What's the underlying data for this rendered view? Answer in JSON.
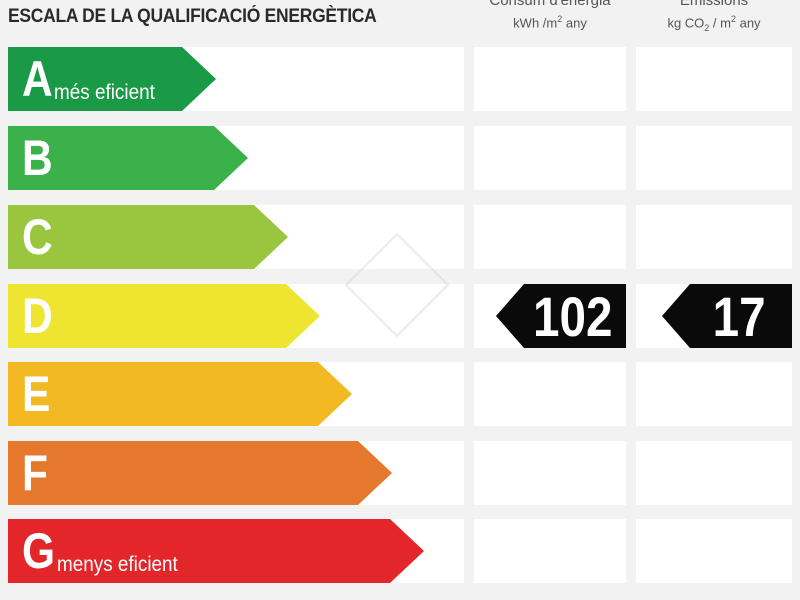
{
  "title": "ESCALA DE LA QUALIFICACIÓ ENERGÈTICA",
  "columns": {
    "consumption": {
      "line1": "Consum d'energia",
      "line2_pre": "kWh /m",
      "line2_sup": "2",
      "line2_post": "  any"
    },
    "emissions": {
      "line1": "Emissions",
      "line2_pre": "kg CO",
      "line2_sub": "2",
      "line2_mid": "  /  m",
      "line2_sup": "2",
      "line2_post": "  any"
    }
  },
  "ratings": [
    {
      "letter": "A",
      "label": "més eficient",
      "color": "#1a9a46",
      "fill": 0.26
    },
    {
      "letter": "B",
      "label": "",
      "color": "#3bb14a",
      "fill": 0.3
    },
    {
      "letter": "C",
      "label": "",
      "color": "#9ac53f",
      "fill": 0.35
    },
    {
      "letter": "D",
      "label": "",
      "color": "#ede530",
      "fill": 0.39
    },
    {
      "letter": "E",
      "label": "",
      "color": "#f2b922",
      "fill": 0.43
    },
    {
      "letter": "F",
      "label": "",
      "color": "#e5782d",
      "fill": 0.48
    },
    {
      "letter": "G",
      "label": "menys eficient",
      "color": "#e2262a",
      "fill": 0.52
    }
  ],
  "result": {
    "rating": "D",
    "consumption_value": "102",
    "emissions_value": "17"
  }
}
